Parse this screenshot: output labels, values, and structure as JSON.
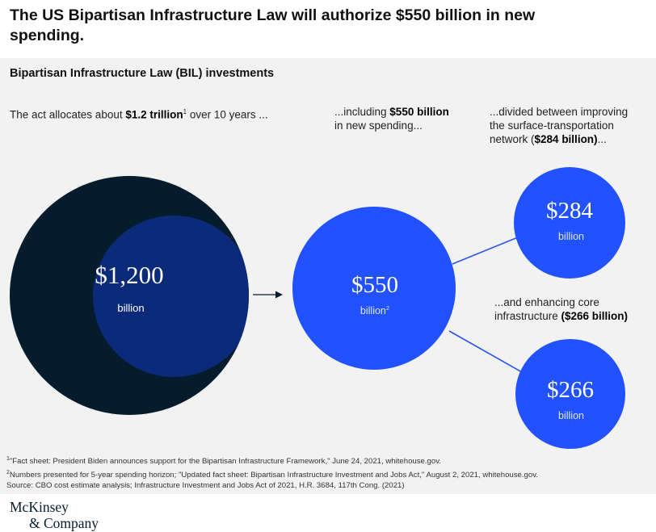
{
  "header": {
    "title": "The US Bipartisan Infrastructure Law will authorize $550 billion in new spending.",
    "subtitle": "Bipartisan Infrastructure Law (BIL) investments"
  },
  "captions": {
    "c1_pre": "The act allocates about ",
    "c1_bold": "$1.2 trillion",
    "c1_sup": "1",
    "c1_post": " over 10 years ...",
    "c2_pre": "...including ",
    "c2_bold": "$550 billion",
    "c2_post": "in new spending...",
    "c3_line1": "...divided between improving",
    "c3_line2": "the surface-transportation",
    "c3_pre": "network (",
    "c3_bold": "$284 billion)",
    "c3_post": "...",
    "c4_line1": "...and enhancing core",
    "c4_pre": "infrastructure ",
    "c4_bold": "($266 billion)"
  },
  "chart_data": {
    "type": "bubble",
    "unit": "billion",
    "bubbles": [
      {
        "id": "total",
        "value": 1200,
        "label": "$1,200",
        "sublabel": "billion",
        "sup": "",
        "color": "#051c2c"
      },
      {
        "id": "new_spending",
        "value": 550,
        "label": "$550",
        "sublabel": "billion",
        "sup": "2",
        "color": "#2251ff"
      },
      {
        "id": "surface_transportation",
        "value": 284,
        "label": "$284",
        "sublabel": "billion",
        "sup": "",
        "color": "#2251ff"
      },
      {
        "id": "core_infrastructure",
        "value": 266,
        "label": "$266",
        "sublabel": "billion",
        "sup": "",
        "color": "#2251ff"
      }
    ]
  },
  "footnotes": {
    "f1_sup": "1",
    "f1": "\"Fact sheet: President Biden announces support for the Bipartisan Infrastructure Framework,\" June 24, 2021, whitehouse.gov.",
    "f2_sup": "2",
    "f2": "Numbers presented for 5-year spending horizon; \"Updated fact sheet: Bipartisan Infrastructure Investment and Jobs Act,\" August 2, 2021, whitehouse.gov.",
    "source": "Source: CBO cost estimate analysis; Infrastructure Investment and Jobs Act of 2021, H.R. 3684, 117th Cong. (2021)"
  },
  "logo": {
    "line1": "McKinsey",
    "line2": "& Company"
  }
}
